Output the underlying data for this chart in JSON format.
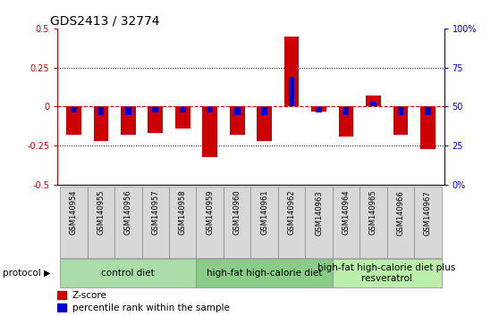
{
  "title": "GDS2413 / 32774",
  "samples": [
    "GSM140954",
    "GSM140955",
    "GSM140956",
    "GSM140957",
    "GSM140958",
    "GSM140959",
    "GSM140960",
    "GSM140961",
    "GSM140962",
    "GSM140963",
    "GSM140964",
    "GSM140965",
    "GSM140966",
    "GSM140967"
  ],
  "zscore": [
    -0.18,
    -0.22,
    -0.18,
    -0.17,
    -0.14,
    -0.32,
    -0.18,
    -0.22,
    0.45,
    -0.03,
    -0.19,
    0.07,
    -0.18,
    -0.27
  ],
  "pct_rank": [
    -0.035,
    -0.055,
    -0.055,
    -0.035,
    -0.04,
    -0.04,
    -0.055,
    -0.055,
    0.19,
    -0.04,
    -0.055,
    0.03,
    -0.055,
    -0.055
  ],
  "ylim": [
    -0.5,
    0.5
  ],
  "yticks_left": [
    -0.5,
    -0.25,
    0.0,
    0.25,
    0.5
  ],
  "ytick_labels_left": [
    "-0.5",
    "-0.25",
    "0",
    "0.25",
    "0.5"
  ],
  "ytick_labels_right": [
    "0%",
    "25",
    "50",
    "75",
    "100%"
  ],
  "dotted_lines": [
    -0.25,
    0.25
  ],
  "bar_color_red": "#cc0000",
  "bar_color_blue": "#0000cc",
  "red_bar_width": 0.55,
  "blue_bar_width": 0.22,
  "protocol_groups": [
    {
      "label": "control diet",
      "start": 0,
      "end": 4,
      "color": "#aaddaa"
    },
    {
      "label": "high-fat high-calorie diet",
      "start": 5,
      "end": 9,
      "color": "#88cc88"
    },
    {
      "label": "high-fat high-calorie diet plus\nresveratrol",
      "start": 10,
      "end": 13,
      "color": "#bbeeaa"
    }
  ],
  "protocol_label": "protocol",
  "legend_zscore": "Z-score",
  "legend_pct": "percentile rank within the sample",
  "left_tick_color": "#cc0000",
  "right_tick_color": "#0000cc",
  "title_fontsize": 10,
  "tick_label_fontsize": 7,
  "sample_label_fontsize": 6,
  "protocol_fontsize": 7.5,
  "legend_fontsize": 7.5
}
